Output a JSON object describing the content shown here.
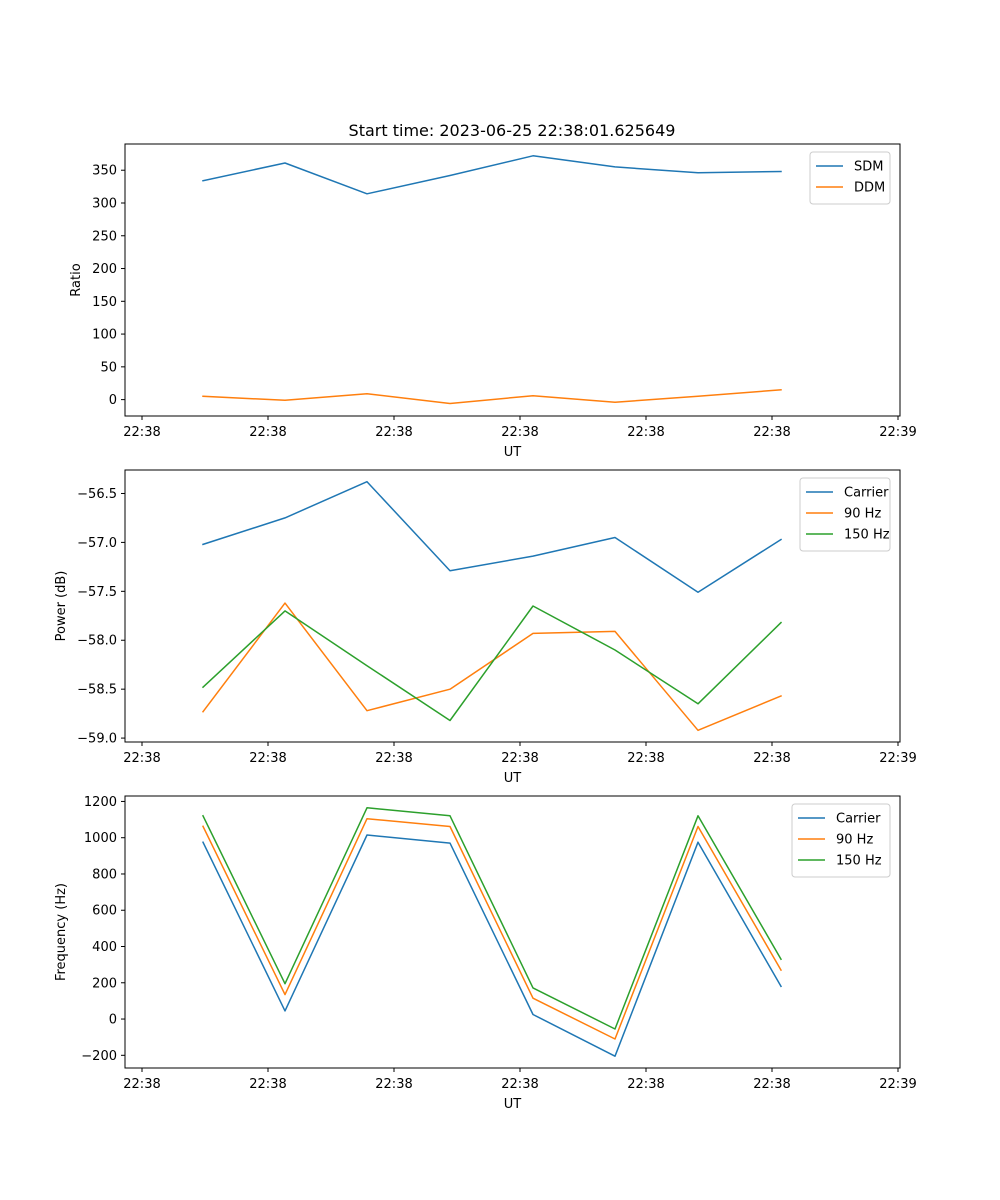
{
  "figure_title": "Start time: 2023-06-25 22:38:01.625649",
  "colors": {
    "blue": "#1f77b4",
    "orange": "#ff7f0e",
    "green": "#2ca02c"
  },
  "chart_data": [
    {
      "type": "line",
      "title": "Start time: 2023-06-25 22:38:01.625649",
      "xlabel": "UT",
      "ylabel": "Ratio",
      "x_tick_labels": [
        "22:38",
        "22:38",
        "22:38",
        "22:38",
        "22:38",
        "22:38",
        "22:39"
      ],
      "yticks": [
        0,
        50,
        100,
        150,
        200,
        250,
        300,
        350
      ],
      "ylim": [
        -25,
        390
      ],
      "legend_position": "top-right",
      "grid": false,
      "series": [
        {
          "name": "SDM",
          "color": "#1f77b4",
          "values": [
            334,
            361,
            314,
            342,
            372,
            355,
            346,
            348
          ]
        },
        {
          "name": "DDM",
          "color": "#ff7f0e",
          "values": [
            5,
            -1,
            9,
            -6,
            6,
            -4,
            5,
            15
          ]
        }
      ]
    },
    {
      "type": "line",
      "title": "",
      "xlabel": "UT",
      "ylabel": "Power (dB)",
      "x_tick_labels": [
        "22:38",
        "22:38",
        "22:38",
        "22:38",
        "22:38",
        "22:38",
        "22:39"
      ],
      "yticks": [
        -59.0,
        -58.5,
        -58.0,
        -57.5,
        -57.0,
        -56.5
      ],
      "ytick_labels": [
        "−59.0",
        "−58.5",
        "−58.0",
        "−57.5",
        "−57.0",
        "−56.5"
      ],
      "ylim": [
        -59.04,
        -56.26
      ],
      "legend_position": "top-right",
      "grid": false,
      "series": [
        {
          "name": "Carrier",
          "color": "#1f77b4",
          "values": [
            -57.02,
            -56.75,
            -56.38,
            -57.29,
            -57.14,
            -56.95,
            -57.51,
            -56.97
          ]
        },
        {
          "name": "90 Hz",
          "color": "#ff7f0e",
          "values": [
            -58.73,
            -57.62,
            -58.72,
            -58.5,
            -57.93,
            -57.91,
            -58.92,
            -58.57
          ]
        },
        {
          "name": "150 Hz",
          "color": "#2ca02c",
          "values": [
            -58.48,
            -57.7,
            -58.26,
            -58.82,
            -57.65,
            -58.1,
            -58.65,
            -57.82
          ]
        }
      ]
    },
    {
      "type": "line",
      "title": "",
      "xlabel": "UT",
      "ylabel": "Frequency (Hz)",
      "x_tick_labels": [
        "22:38",
        "22:38",
        "22:38",
        "22:38",
        "22:38",
        "22:38",
        "22:39"
      ],
      "yticks": [
        -200,
        0,
        200,
        400,
        600,
        800,
        1000,
        1200
      ],
      "ytick_labels": [
        "−200",
        "0",
        "200",
        "400",
        "600",
        "800",
        "1000",
        "1200"
      ],
      "ylim": [
        -270,
        1230
      ],
      "legend_position": "top-right",
      "grid": false,
      "series": [
        {
          "name": "Carrier",
          "color": "#1f77b4",
          "values": [
            975,
            45,
            1015,
            970,
            25,
            -205,
            975,
            180
          ]
        },
        {
          "name": "90 Hz",
          "color": "#ff7f0e",
          "values": [
            1063,
            135,
            1105,
            1062,
            115,
            -110,
            1062,
            270
          ]
        },
        {
          "name": "150 Hz",
          "color": "#2ca02c",
          "values": [
            1121,
            195,
            1165,
            1121,
            172,
            -55,
            1121,
            330
          ]
        }
      ]
    }
  ]
}
